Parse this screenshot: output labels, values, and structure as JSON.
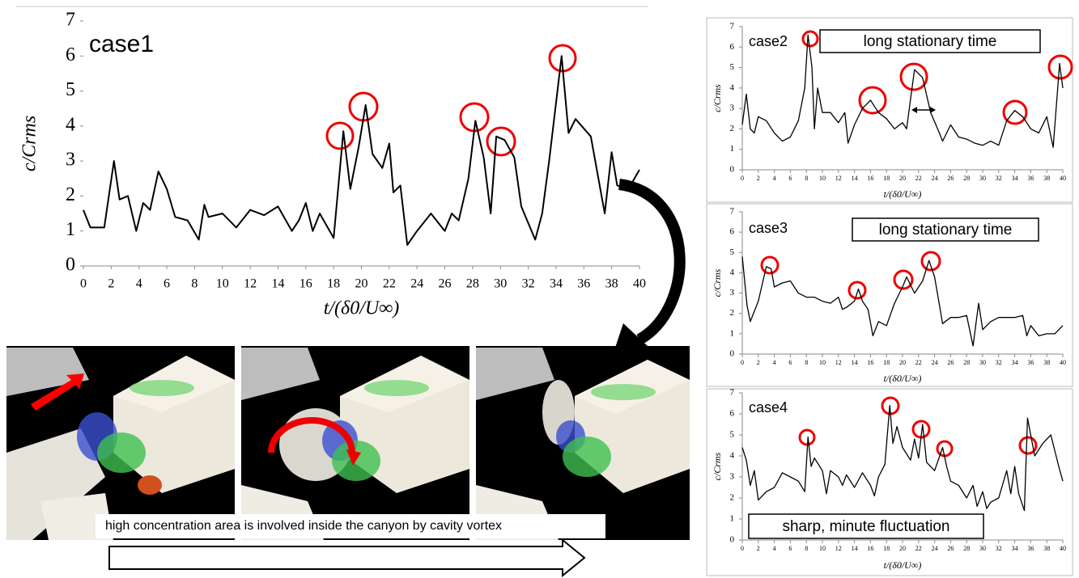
{
  "chart_data": [
    {
      "type": "line",
      "title": "case1",
      "xlabel": "t/(δ0/U∞)",
      "ylabel": "c/Crms",
      "color": "#000000",
      "xlim": [
        0,
        40
      ],
      "ylim": [
        0,
        7
      ],
      "xticks": [
        0,
        2,
        4,
        6,
        8,
        10,
        12,
        14,
        16,
        18,
        20,
        22,
        24,
        26,
        28,
        30,
        32,
        34,
        36,
        38,
        40
      ],
      "yticks": [
        0,
        1,
        2,
        3,
        4,
        5,
        6,
        7
      ],
      "x": [
        0,
        0.5,
        1.5,
        2.2,
        2.6,
        3.2,
        3.8,
        4.3,
        4.8,
        5.4,
        6,
        6.6,
        7.5,
        8.3,
        8.7,
        9,
        10,
        11,
        12,
        13,
        14,
        15,
        15.5,
        16,
        16.5,
        17,
        18,
        18.7,
        19.2,
        19.8,
        20.3,
        20.8,
        21.5,
        22,
        22.3,
        22.8,
        23.3,
        24,
        25,
        26,
        26.5,
        27,
        27.7,
        28.2,
        28.8,
        29.3,
        29.7,
        30.3,
        31,
        31.5,
        32.5,
        33,
        33.5,
        34.4,
        34.9,
        35.4,
        36.5,
        37.5,
        38,
        38.4,
        39.2,
        40
      ],
      "values": [
        1.6,
        1.1,
        1.1,
        3.0,
        1.9,
        2.0,
        1.0,
        1.8,
        1.6,
        2.7,
        2.2,
        1.4,
        1.3,
        0.75,
        1.75,
        1.4,
        1.5,
        1.1,
        1.6,
        1.45,
        1.7,
        1.0,
        1.3,
        1.8,
        1.0,
        1.5,
        0.8,
        3.85,
        2.2,
        3.4,
        4.6,
        3.2,
        2.8,
        3.5,
        2.1,
        2.3,
        0.6,
        1.0,
        1.5,
        1.0,
        1.5,
        1.3,
        2.5,
        4.15,
        3.1,
        1.5,
        3.7,
        3.6,
        3.1,
        1.7,
        0.75,
        1.5,
        3.0,
        6.0,
        3.8,
        4.2,
        3.7,
        1.5,
        3.25,
        2.3,
        2.2,
        2.75
      ]
    },
    {
      "type": "line",
      "title": "case2",
      "annotation": "long stationary time",
      "xlabel": "t/(δ0/U∞)",
      "ylabel": "c/Crms",
      "color": "#000000",
      "xlim": [
        0,
        40
      ],
      "ylim": [
        0,
        7
      ],
      "xticks": [
        0,
        2,
        4,
        6,
        8,
        10,
        12,
        14,
        16,
        18,
        20,
        22,
        24,
        26,
        28,
        30,
        32,
        34,
        36,
        38,
        40
      ],
      "yticks": [
        0,
        1,
        2,
        3,
        4,
        5,
        6,
        7
      ],
      "x": [
        0,
        0.5,
        1,
        1.5,
        2,
        3,
        4,
        5,
        6,
        7,
        7.8,
        8.2,
        8.7,
        9,
        9.4,
        10,
        11,
        12,
        12.8,
        13.2,
        14,
        15,
        16,
        17,
        18,
        19,
        20,
        20.5,
        21.5,
        22.5,
        23.5,
        24.5,
        25,
        26,
        27,
        28,
        29,
        30,
        31,
        32,
        33,
        34,
        35,
        36,
        37,
        38,
        38.8,
        39.4,
        39.6,
        40
      ],
      "values": [
        2.2,
        3.7,
        2.0,
        1.8,
        2.6,
        2.4,
        1.8,
        1.4,
        1.6,
        2.4,
        4.0,
        6.6,
        5.0,
        2.0,
        4.0,
        2.8,
        2.8,
        2.3,
        2.8,
        1.3,
        2.2,
        3.0,
        3.4,
        2.8,
        2.5,
        2.0,
        2.3,
        2.0,
        4.9,
        4.5,
        2.8,
        1.9,
        1.4,
        2.2,
        1.6,
        1.5,
        1.3,
        1.2,
        1.4,
        1.2,
        2.4,
        2.9,
        2.6,
        2.0,
        1.8,
        2.6,
        1.1,
        4.2,
        5.2,
        4.0
      ]
    },
    {
      "type": "line",
      "title": "case3",
      "annotation": "long stationary time",
      "xlabel": "t/(δ0/U∞)",
      "ylabel": "c/Crms",
      "color": "#000000",
      "xlim": [
        0,
        40
      ],
      "ylim": [
        0,
        7
      ],
      "xticks": [
        0,
        2,
        4,
        6,
        8,
        10,
        12,
        14,
        16,
        18,
        20,
        22,
        24,
        26,
        28,
        30,
        32,
        34,
        36,
        38,
        40
      ],
      "yticks": [
        0,
        1,
        2,
        3,
        4,
        5,
        6,
        7
      ],
      "x": [
        0,
        0.6,
        1,
        2,
        3,
        3.6,
        4,
        5,
        6,
        7,
        8,
        9,
        10,
        11,
        12,
        12.5,
        13,
        14,
        14.5,
        15,
        15.7,
        16.3,
        17,
        18,
        19,
        20,
        20.5,
        21.5,
        22.5,
        23.3,
        24,
        25,
        26,
        27,
        28,
        28.8,
        29.5,
        30,
        31,
        32,
        34,
        35,
        35.5,
        36,
        37,
        38,
        39,
        40
      ],
      "values": [
        4.8,
        2.4,
        1.6,
        2.6,
        4.3,
        4.2,
        3.3,
        3.5,
        3.6,
        3.0,
        2.8,
        2.8,
        2.6,
        2.5,
        2.8,
        2.2,
        2.3,
        2.6,
        3.2,
        2.6,
        2.2,
        0.9,
        1.6,
        1.4,
        2.5,
        3.3,
        3.8,
        3.0,
        3.6,
        4.6,
        3.8,
        1.5,
        1.8,
        1.8,
        1.9,
        0.4,
        2.5,
        1.2,
        1.6,
        1.8,
        1.8,
        1.9,
        0.9,
        1.4,
        0.9,
        1.0,
        1.0,
        1.4
      ]
    },
    {
      "type": "line",
      "title": "case4",
      "annotation": "sharp, minute fluctuation",
      "xlabel": "t/(δ0/U∞)",
      "ylabel": "c/Crms",
      "color": "#000000",
      "xlim": [
        0,
        40
      ],
      "ylim": [
        0,
        7
      ],
      "xticks": [
        0,
        2,
        4,
        6,
        8,
        10,
        12,
        14,
        16,
        18,
        20,
        22,
        24,
        26,
        28,
        30,
        32,
        34,
        36,
        38,
        40
      ],
      "yticks": [
        0,
        1,
        2,
        3,
        4,
        5,
        6,
        7
      ],
      "x": [
        0,
        0.5,
        1,
        1.5,
        2,
        3,
        4,
        5,
        6,
        7,
        7.8,
        8.2,
        8.6,
        9,
        10,
        10.5,
        11,
        12,
        12.5,
        13,
        14,
        15,
        16,
        16.5,
        17,
        17.8,
        18.4,
        18.8,
        19.3,
        20,
        21,
        21.5,
        22,
        22.5,
        23,
        24,
        25,
        25.5,
        26,
        27,
        28,
        28.8,
        29.3,
        30,
        30.5,
        31,
        32,
        33,
        33.5,
        34,
        34.5,
        35.2,
        35.6,
        36.5,
        37.5,
        38.5,
        39.5,
        40
      ],
      "values": [
        4.4,
        3.8,
        2.6,
        3.3,
        1.9,
        2.3,
        2.5,
        3.2,
        3.0,
        2.8,
        2.3,
        4.9,
        3.5,
        3.9,
        3.3,
        2.2,
        3.3,
        3.0,
        2.6,
        3.1,
        2.5,
        3.2,
        2.6,
        2.1,
        3.0,
        3.6,
        6.4,
        4.6,
        5.4,
        4.4,
        3.8,
        4.8,
        3.9,
        5.5,
        3.7,
        3.3,
        4.4,
        3.5,
        2.8,
        2.6,
        2.0,
        2.6,
        1.6,
        2.3,
        1.5,
        1.8,
        2.0,
        3.3,
        2.2,
        3.5,
        2.2,
        1.4,
        5.8,
        4.0,
        4.6,
        5.0,
        3.5,
        2.8
      ]
    }
  ],
  "caption": "high concentration area is involved inside the canyon by cavity vortex"
}
